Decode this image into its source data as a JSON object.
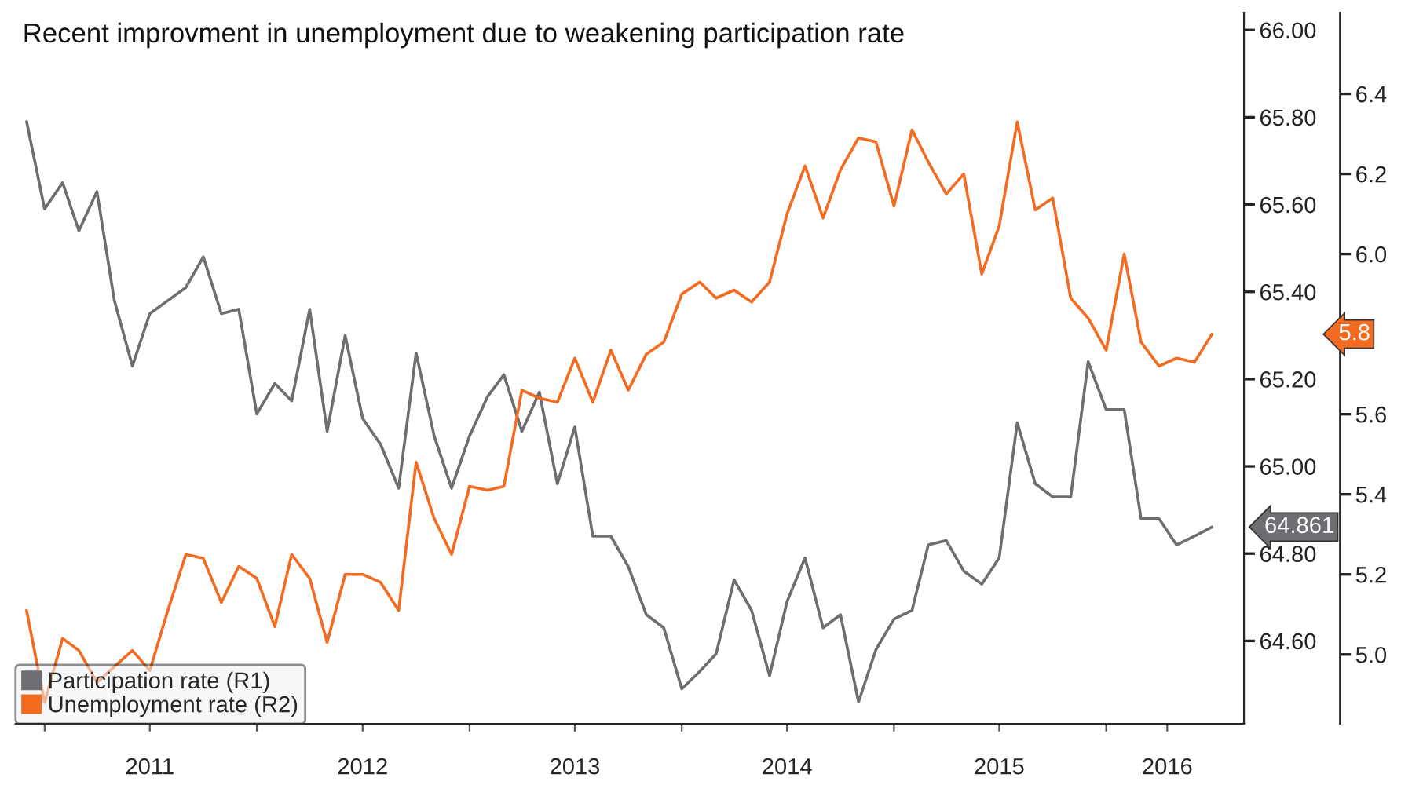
{
  "chart_data": {
    "type": "line",
    "title": "Recent improvment in unemployment due to weakening participation rate",
    "x": [
      "2010-12",
      "2011-01",
      "2011-02",
      "2011-03",
      "2011-04",
      "2011-05",
      "2011-06",
      "2011-07",
      "2011-08",
      "2011-09",
      "2011-10",
      "2011-11",
      "2011-12",
      "2012-01",
      "2012-02",
      "2012-03",
      "2012-04",
      "2012-05",
      "2012-06",
      "2012-07",
      "2012-08",
      "2012-09",
      "2012-10",
      "2012-11",
      "2012-12",
      "2013-01",
      "2013-02",
      "2013-03",
      "2013-04",
      "2013-05",
      "2013-06",
      "2013-07",
      "2013-08",
      "2013-09",
      "2013-10",
      "2013-11",
      "2013-12",
      "2014-01",
      "2014-02",
      "2014-03",
      "2014-04",
      "2014-05",
      "2014-06",
      "2014-07",
      "2014-08",
      "2014-09",
      "2014-10",
      "2014-11",
      "2014-12",
      "2015-01",
      "2015-02",
      "2015-03",
      "2015-04",
      "2015-05",
      "2015-06",
      "2015-07",
      "2015-08",
      "2015-09",
      "2015-10",
      "2015-11",
      "2015-12",
      "2016-01",
      "2016-02",
      "2016-03",
      "2016-04",
      "2016-05",
      "2016-06",
      "2016-07"
    ],
    "series": [
      {
        "name": "Participation rate (R1)",
        "color": "#6d6e71",
        "axis": "y",
        "values": [
          65.79,
          65.59,
          65.65,
          65.54,
          65.63,
          65.38,
          65.23,
          65.35,
          65.38,
          65.41,
          65.48,
          65.35,
          65.36,
          65.12,
          65.19,
          65.15,
          65.36,
          65.08,
          65.3,
          65.11,
          65.05,
          64.95,
          65.26,
          65.07,
          64.95,
          65.07,
          65.16,
          65.21,
          65.08,
          65.17,
          64.96,
          65.09,
          64.84,
          64.84,
          64.77,
          64.66,
          64.63,
          64.49,
          64.53,
          64.57,
          64.74,
          64.67,
          64.52,
          64.69,
          64.79,
          64.63,
          64.66,
          64.46,
          64.58,
          64.65,
          64.67,
          64.82,
          64.83,
          64.76,
          64.73,
          64.79,
          65.1,
          64.96,
          64.93,
          64.93,
          65.24,
          65.13,
          65.13,
          64.88,
          64.88,
          64.82,
          64.84,
          64.861
        ]
      },
      {
        "name": "Unemployment rate (R2)",
        "color": "#f26b21",
        "axis": "y2",
        "values": [
          5.11,
          4.88,
          5.04,
          5.01,
          4.93,
          4.97,
          5.01,
          4.96,
          5.11,
          5.25,
          5.24,
          5.13,
          5.22,
          5.19,
          5.07,
          5.25,
          5.19,
          5.03,
          5.2,
          5.2,
          5.18,
          5.11,
          5.48,
          5.34,
          5.25,
          5.42,
          5.41,
          5.42,
          5.66,
          5.64,
          5.63,
          5.74,
          5.63,
          5.76,
          5.66,
          5.75,
          5.78,
          5.9,
          5.93,
          5.89,
          5.91,
          5.88,
          5.93,
          6.1,
          6.22,
          6.09,
          6.21,
          6.29,
          6.28,
          6.12,
          6.31,
          6.23,
          6.15,
          6.2,
          5.95,
          6.07,
          6.33,
          6.11,
          6.14,
          5.89,
          5.84,
          5.76,
          6.0,
          5.78,
          5.72,
          5.74,
          5.73,
          5.8
        ]
      }
    ],
    "xlim": [
      "2010-11-12",
      "2016-08-25"
    ],
    "xticks": [
      {
        "value": "2011-01-01",
        "label": null
      },
      {
        "value": "2011-07-01",
        "label": "2011"
      },
      {
        "value": "2012-01-01",
        "label": null
      },
      {
        "value": "2012-07-01",
        "label": "2012"
      },
      {
        "value": "2013-01-01",
        "label": null
      },
      {
        "value": "2013-07-01",
        "label": "2013"
      },
      {
        "value": "2014-01-01",
        "label": null
      },
      {
        "value": "2014-07-01",
        "label": "2014"
      },
      {
        "value": "2015-01-01",
        "label": null
      },
      {
        "value": "2015-07-01",
        "label": "2015"
      },
      {
        "value": "2016-01-01",
        "label": null
      },
      {
        "value": "2016-04-15",
        "label": "2016"
      }
    ],
    "ylim": [
      64.41,
      66.04
    ],
    "yticks": [
      {
        "value": 64.6,
        "label": "64.60"
      },
      {
        "value": 64.8,
        "label": "64.80"
      },
      {
        "value": 65.0,
        "label": "65.00"
      },
      {
        "value": 65.2,
        "label": "65.20"
      },
      {
        "value": 65.4,
        "label": "65.40"
      },
      {
        "value": 65.6,
        "label": "65.60"
      },
      {
        "value": 65.8,
        "label": "65.80"
      },
      {
        "value": 66.0,
        "label": "66.00"
      }
    ],
    "y2lim": [
      4.827,
      6.603
    ],
    "y2ticks": [
      {
        "value": 5.0,
        "label": "5.0"
      },
      5.2,
      5.4,
      5.6,
      {
        "value": 6.0,
        "label": "6.0"
      },
      6.2,
      6.4
    ],
    "annotations": [
      {
        "text": "64.861",
        "x": "2016-07",
        "y": 64.861
      },
      "5.8"
    ],
    "legend": "bottom left",
    "grid": false,
    "line_style": "solid",
    "marker": "none"
  }
}
